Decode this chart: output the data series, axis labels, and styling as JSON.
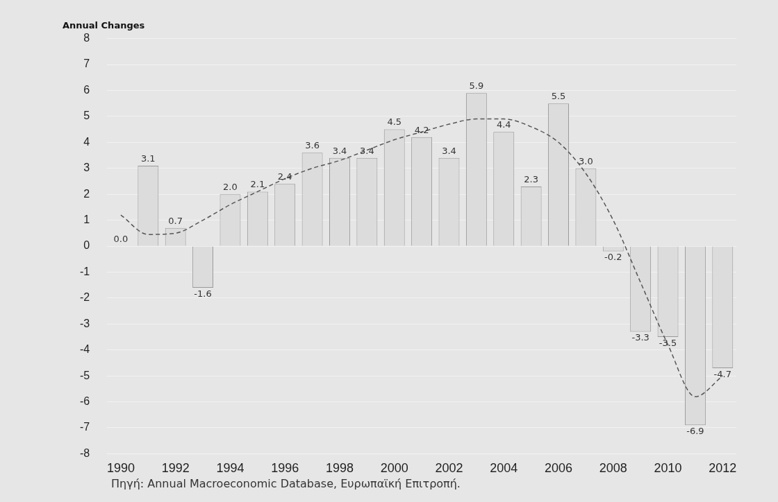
{
  "chart_data": {
    "type": "bar",
    "title": "Annual Changes",
    "categories": [
      "1990",
      null,
      "1992",
      null,
      "1994",
      null,
      "1996",
      null,
      "1998",
      null,
      "2000",
      null,
      "2002",
      null,
      "2004",
      null,
      "2006",
      null,
      "2008",
      null,
      "2010",
      null,
      "2012"
    ],
    "series": [
      {
        "color": "#dcdcdc",
        "values": [
          0.0,
          3.1,
          0.7,
          -1.6,
          2.0,
          2.1,
          2.4,
          3.6,
          3.4,
          3.4,
          4.5,
          4.2,
          3.4,
          5.9,
          4.4,
          2.3,
          5.5,
          3.0,
          -0.2,
          -3.3,
          -3.5,
          -6.9,
          -4.7
        ],
        "value_labels": [
          "0.0",
          "3.1",
          "0.7",
          "-1.6",
          "2.0",
          "2.1",
          "2.4",
          "3.6",
          "3.4",
          "3.4",
          "4.5",
          "4.2",
          "3.4",
          "5.9",
          "4.4",
          "2.3",
          "5.5",
          "3.0",
          "-0.2",
          "-3.3",
          "-3.5",
          "-6.9",
          "-4.7"
        ]
      },
      {
        "type": "line",
        "color": "#555555",
        "line_style": "dashed",
        "marker": "none",
        "values": [
          1.2,
          0.45,
          0.5,
          1.0,
          1.6,
          2.1,
          2.6,
          3.0,
          3.3,
          3.7,
          4.1,
          4.4,
          4.7,
          4.9,
          4.9,
          4.6,
          4.0,
          2.8,
          1.0,
          -1.4,
          -3.8,
          -5.8,
          -5.0
        ]
      }
    ],
    "ylim": [
      -8,
      8
    ],
    "yticks": [
      -8,
      -7,
      -6,
      -5,
      -4,
      -3,
      -2,
      -1,
      0,
      1,
      2,
      3,
      4,
      5,
      6,
      7,
      8
    ],
    "grid": "y",
    "legend": false,
    "annotations": [
      "Πηγή: Annual Macroeconomic Database, Ευρωπαϊκή Επιτροπή."
    ]
  }
}
